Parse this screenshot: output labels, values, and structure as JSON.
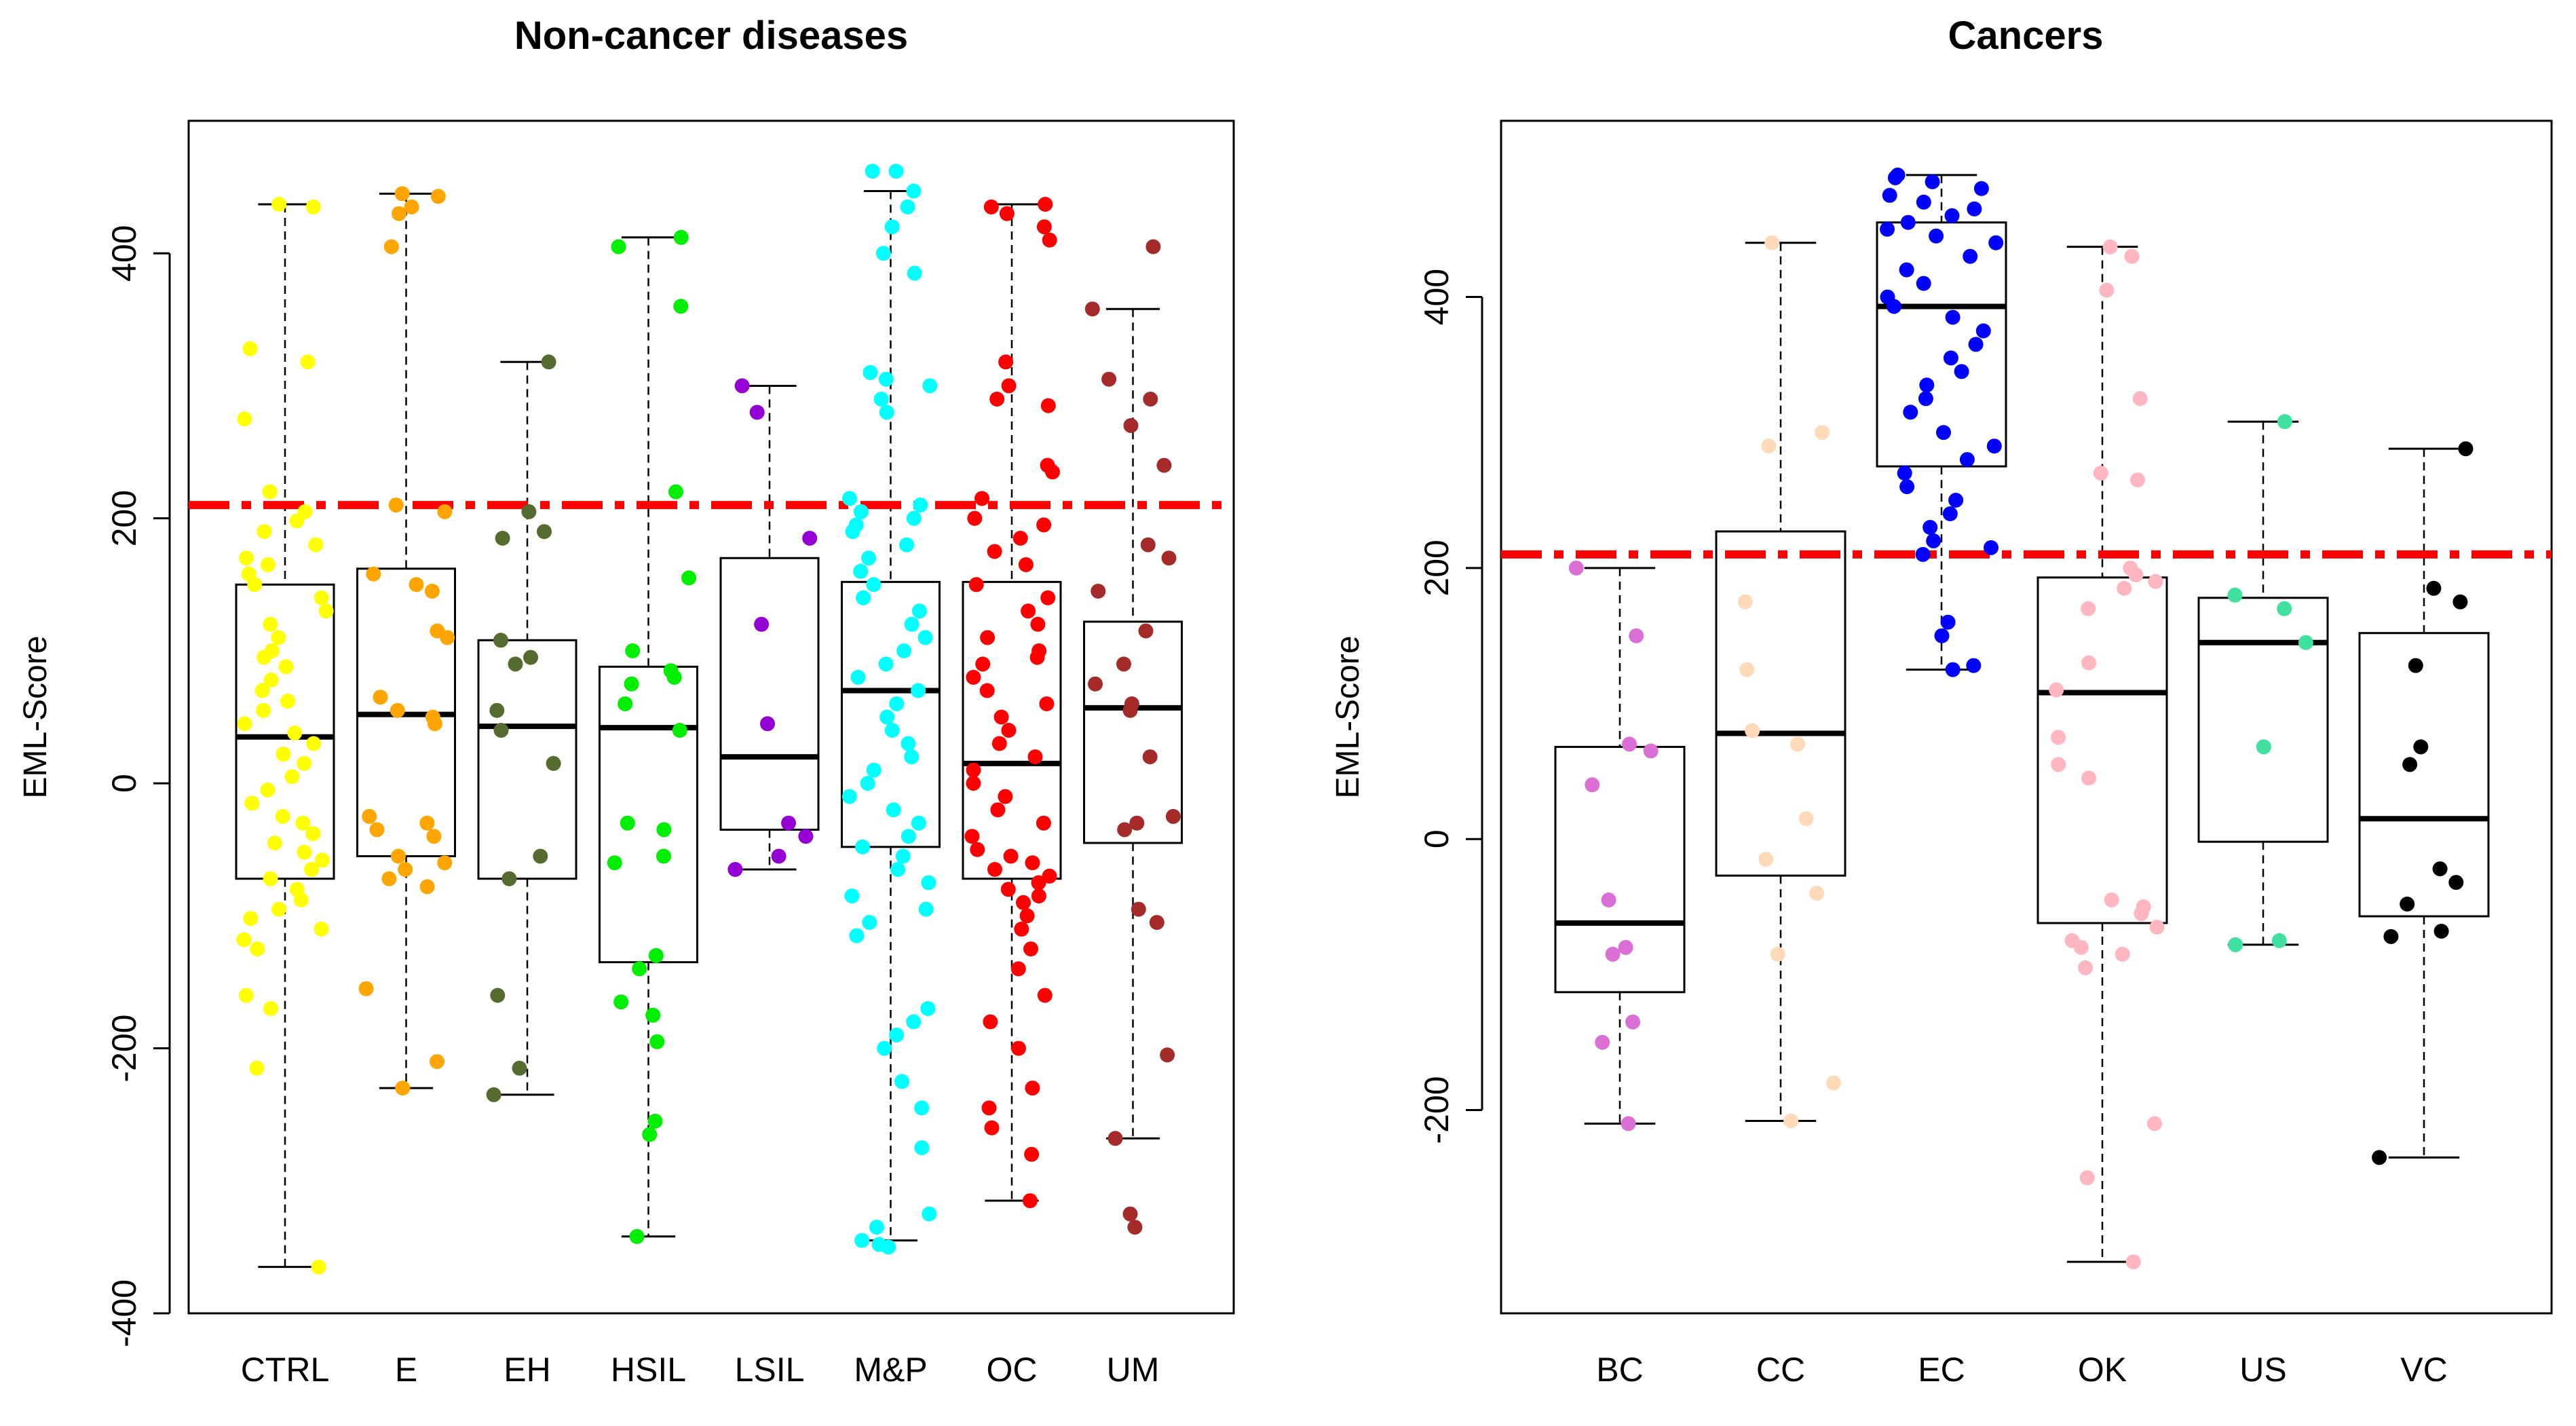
{
  "chart_data": [
    {
      "type": "box",
      "title": "Non-cancer diseases",
      "xlabel": "",
      "ylabel": "EML-Score",
      "ylim": [
        -400,
        500
      ],
      "yticks": [
        -400,
        -200,
        0,
        200,
        400
      ],
      "threshold": 210,
      "threshold_color": "#ff0000",
      "categories": [
        "CTRL",
        "E",
        "EH",
        "HSIL",
        "LSIL",
        "M&P",
        "OC",
        "UM"
      ],
      "colors": [
        "#ffff00",
        "#ffa500",
        "#556b2f",
        "#00ee00",
        "#9400d3",
        "#00ffff",
        "#ff0000",
        "#a52a2a"
      ],
      "boxes": [
        {
          "q1": -72,
          "median": 35,
          "q3": 150,
          "whisker_low": -365,
          "whisker_high": 437
        },
        {
          "q1": -55,
          "median": 52,
          "q3": 162,
          "whisker_low": -230,
          "whisker_high": 445
        },
        {
          "q1": -72,
          "median": 43,
          "q3": 108,
          "whisker_low": -235,
          "whisker_high": 318
        },
        {
          "q1": -135,
          "median": 42,
          "q3": 88,
          "whisker_low": -342,
          "whisker_high": 412
        },
        {
          "q1": -35,
          "median": 20,
          "q3": 170,
          "whisker_low": -65,
          "whisker_high": 300
        },
        {
          "q1": -48,
          "median": 70,
          "q3": 152,
          "whisker_low": -345,
          "whisker_high": 447
        },
        {
          "q1": -72,
          "median": 15,
          "q3": 152,
          "whisker_low": -315,
          "whisker_high": 437
        },
        {
          "q1": -45,
          "median": 57,
          "q3": 122,
          "whisker_low": -268,
          "whisker_high": 358
        }
      ],
      "points": [
        [
          437,
          435,
          328,
          318,
          275,
          220,
          205,
          198,
          190,
          180,
          170,
          165,
          158,
          150,
          140,
          130,
          120,
          110,
          100,
          95,
          88,
          78,
          70,
          62,
          55,
          45,
          38,
          30,
          22,
          15,
          5,
          -5,
          -15,
          -25,
          -30,
          -38,
          -45,
          -52,
          -58,
          -65,
          -72,
          -80,
          -88,
          -95,
          -102,
          -110,
          -118,
          -125,
          -160,
          -170,
          -215,
          -365
        ],
        [
          445,
          443,
          435,
          430,
          405,
          210,
          205,
          158,
          150,
          145,
          115,
          110,
          65,
          55,
          50,
          45,
          -25,
          -30,
          -35,
          -40,
          -55,
          -60,
          -65,
          -72,
          -78,
          -155,
          -210,
          -230
        ],
        [
          318,
          205,
          190,
          185,
          108,
          95,
          90,
          55,
          40,
          15,
          -55,
          -72,
          -160,
          -215,
          -235
        ],
        [
          412,
          405,
          360,
          220,
          155,
          100,
          85,
          80,
          75,
          60,
          40,
          -30,
          -35,
          -55,
          -60,
          -130,
          -140,
          -165,
          -175,
          -195,
          -255,
          -265,
          -342
        ],
        [
          300,
          280,
          185,
          120,
          45,
          -30,
          -40,
          -55,
          -65
        ],
        [
          462,
          462,
          447,
          435,
          420,
          400,
          385,
          310,
          305,
          300,
          290,
          280,
          215,
          210,
          205,
          200,
          195,
          190,
          180,
          170,
          160,
          150,
          140,
          130,
          120,
          110,
          100,
          90,
          80,
          70,
          60,
          50,
          40,
          30,
          20,
          10,
          0,
          -10,
          -20,
          -30,
          -40,
          -48,
          -55,
          -65,
          -75,
          -85,
          -95,
          -105,
          -115,
          -170,
          -180,
          -190,
          -200,
          -225,
          -245,
          -275,
          -325,
          -335,
          -345,
          -348,
          -350
        ],
        [
          437,
          435,
          430,
          420,
          410,
          318,
          300,
          290,
          285,
          240,
          235,
          215,
          200,
          195,
          185,
          175,
          165,
          150,
          140,
          130,
          120,
          110,
          100,
          95,
          90,
          80,
          70,
          60,
          50,
          40,
          30,
          20,
          10,
          0,
          -10,
          -20,
          -30,
          -40,
          -50,
          -55,
          -60,
          -65,
          -70,
          -75,
          -80,
          -85,
          -90,
          -100,
          -110,
          -125,
          -140,
          -160,
          -180,
          -200,
          -230,
          -245,
          -260,
          -280,
          -315
        ],
        [
          405,
          358,
          305,
          290,
          270,
          240,
          180,
          170,
          145,
          115,
          90,
          75,
          60,
          55,
          20,
          -25,
          -30,
          -35,
          -95,
          -105,
          -205,
          -268,
          -325,
          -335
        ]
      ]
    },
    {
      "type": "box",
      "title": "Cancers",
      "xlabel": "",
      "ylabel": "EML-Score",
      "ylim": [
        -350,
        530
      ],
      "yticks": [
        -200,
        0,
        200,
        400
      ],
      "threshold": 210,
      "threshold_color": "#ff0000",
      "categories": [
        "BC",
        "CC",
        "EC",
        "OK",
        "US",
        "VC"
      ],
      "colors": [
        "#da70d6",
        "#ffdab9",
        "#0000ff",
        "#ffb6c1",
        "#40e0a0",
        "#000000"
      ],
      "boxes": [
        {
          "q1": -113,
          "median": -62,
          "q3": 68,
          "whisker_low": -210,
          "whisker_high": 200
        },
        {
          "q1": -27,
          "median": 78,
          "q3": 227,
          "whisker_low": -208,
          "whisker_high": 440
        },
        {
          "q1": 275,
          "median": 393,
          "q3": 455,
          "whisker_low": 125,
          "whisker_high": 490
        },
        {
          "q1": -62,
          "median": 108,
          "q3": 193,
          "whisker_low": -312,
          "whisker_high": 437
        },
        {
          "q1": -2,
          "median": 145,
          "q3": 178,
          "whisker_low": -78,
          "whisker_high": 308
        },
        {
          "q1": -57,
          "median": 15,
          "q3": 152,
          "whisker_low": -235,
          "whisker_high": 288
        }
      ],
      "points": [
        [
          200,
          150,
          70,
          65,
          40,
          -45,
          -80,
          -85,
          -135,
          -150,
          -210
        ],
        [
          440,
          300,
          290,
          175,
          125,
          80,
          70,
          15,
          -15,
          -40,
          -85,
          -180,
          -208
        ],
        [
          490,
          488,
          485,
          480,
          475,
          470,
          465,
          460,
          455,
          450,
          445,
          440,
          430,
          420,
          410,
          400,
          393,
          385,
          375,
          365,
          355,
          345,
          335,
          325,
          315,
          300,
          290,
          280,
          270,
          260,
          250,
          240,
          230,
          220,
          215,
          210,
          160,
          150,
          128,
          125
        ],
        [
          437,
          430,
          405,
          325,
          270,
          265,
          200,
          195,
          190,
          185,
          170,
          130,
          110,
          75,
          55,
          45,
          -45,
          -50,
          -55,
          -65,
          -75,
          -80,
          -85,
          -95,
          -210,
          -250,
          -312
        ],
        [
          308,
          180,
          170,
          145,
          68,
          -75,
          -78
        ],
        [
          288,
          185,
          175,
          128,
          68,
          55,
          -22,
          -32,
          -48,
          -68,
          -72,
          -235
        ]
      ]
    }
  ]
}
